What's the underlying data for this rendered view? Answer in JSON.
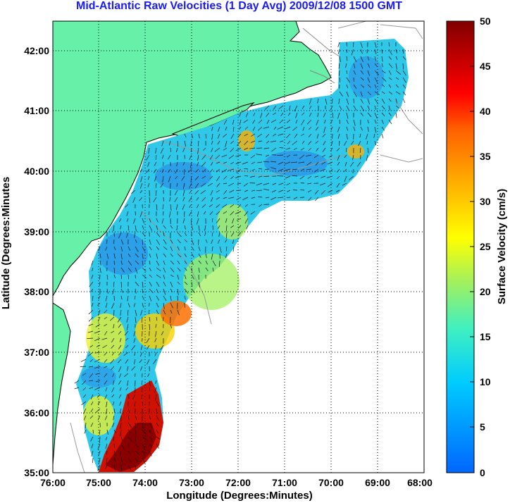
{
  "title": "Mid-Atlantic Raw Velocities (1 Day Avg) 2009/12/08 1500 GMT",
  "x_axis": {
    "label": "Longitude (Degrees:Minutes)",
    "ticks": [
      "76:00",
      "75:00",
      "74:00",
      "73:00",
      "72:00",
      "71:00",
      "70:00",
      "69:00",
      "68:00"
    ]
  },
  "y_axis": {
    "label": "Latitude (Degrees:Minutes",
    "ticks": [
      "42:00",
      "41:00",
      "40:00",
      "39:00",
      "38:00",
      "37:00",
      "36:00",
      "35:00"
    ]
  },
  "colorbar": {
    "label": "Surface Velocity (cm/s)",
    "ticks": [
      "50",
      "45",
      "40",
      "35",
      "30",
      "25",
      "20",
      "15",
      "10",
      "5",
      "0"
    ],
    "min": 0,
    "max": 50,
    "colors": [
      "#0066ff",
      "#00ccff",
      "#40f0c0",
      "#a0f060",
      "#ffff00",
      "#ffb000",
      "#ff6000",
      "#ff0000",
      "#a00000",
      "#800000"
    ]
  },
  "colors": {
    "land": "#66f0a8",
    "ocean": "#ffffff",
    "title": "#1a1aff"
  }
}
